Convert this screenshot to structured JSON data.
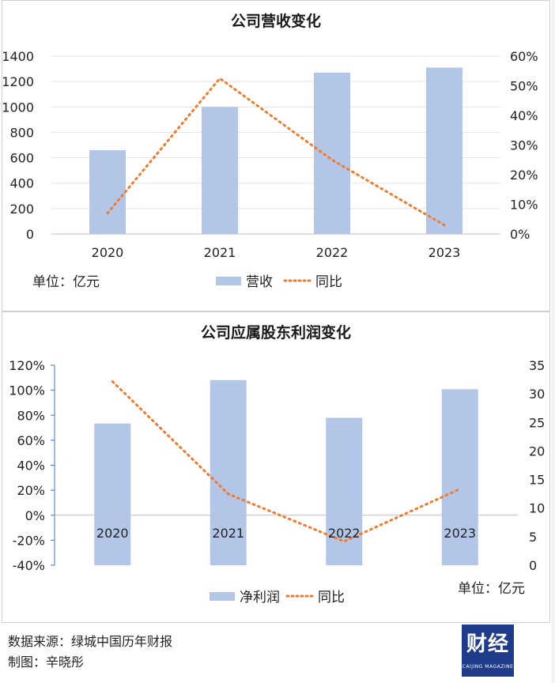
{
  "chart_data": [
    {
      "type": "bar",
      "title": "公司营收变化",
      "categories": [
        "2020",
        "2021",
        "2022",
        "2023"
      ],
      "series": [
        {
          "name": "营收",
          "type": "bar",
          "axis": "left",
          "values": [
            660,
            1000,
            1270,
            1310
          ]
        },
        {
          "name": "同比",
          "type": "line",
          "axis": "right",
          "values": [
            0.07,
            0.525,
            0.25,
            0.03
          ]
        }
      ],
      "left_axis": {
        "ylim": [
          0,
          1400
        ],
        "ticks": [
          "0",
          "200",
          "400",
          "600",
          "800",
          "1000",
          "1200",
          "1400"
        ]
      },
      "right_axis": {
        "ylim": [
          0,
          0.6
        ],
        "ticks": [
          "0%",
          "10%",
          "20%",
          "30%",
          "40%",
          "50%",
          "60%"
        ]
      },
      "unit_label": "单位：亿元",
      "legend": "bottom",
      "grid": true,
      "colors": {
        "bar": "#b4c6e7",
        "line": "#ed7d31"
      }
    },
    {
      "type": "bar",
      "title": "公司应属股东利润变化",
      "categories": [
        "2020",
        "2021",
        "2022",
        "2023"
      ],
      "series": [
        {
          "name": "净利润",
          "type": "bar",
          "axis": "right",
          "values": [
            24.8,
            32.4,
            25.8,
            30.8
          ]
        },
        {
          "name": "同比",
          "type": "line",
          "axis": "left",
          "values": [
            1.07,
            0.17,
            -0.21,
            0.21
          ]
        }
      ],
      "left_axis": {
        "ylim": [
          -0.4,
          1.2
        ],
        "ticks": [
          "-40%",
          "-20%",
          "0%",
          "20%",
          "40%",
          "60%",
          "80%",
          "100%",
          "120%"
        ]
      },
      "right_axis": {
        "ylim": [
          0,
          35
        ],
        "ticks": [
          "0",
          "5",
          "10",
          "15",
          "20",
          "25",
          "30",
          "35"
        ]
      },
      "unit_label": "单位：亿元",
      "legend": "bottom",
      "grid": false,
      "colors": {
        "bar": "#b4c6e7",
        "line": "#ed7d31"
      }
    }
  ],
  "footer": {
    "source": "数据来源：绿城中国历年财报",
    "author": "制图：辛晓彤"
  },
  "logo": {
    "main": "财经",
    "sub": "CAIJING MAGAZINE"
  }
}
